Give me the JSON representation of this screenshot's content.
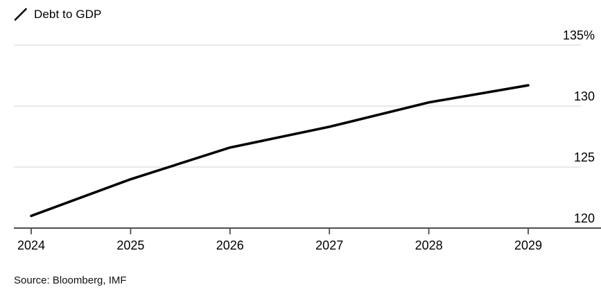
{
  "legend": {
    "label": "Debt to GDP"
  },
  "source": {
    "text": "Source: Bloomberg, IMF"
  },
  "chart_data": {
    "type": "line",
    "title": "",
    "categories": [
      "2024",
      "2025",
      "2026",
      "2027",
      "2028",
      "2029"
    ],
    "series": [
      {
        "name": "Debt to GDP",
        "values": [
          121.0,
          124.0,
          126.6,
          128.3,
          130.3,
          131.7
        ]
      }
    ],
    "xlabel": "",
    "ylabel": "",
    "ylim": [
      120,
      135
    ],
    "ytick_values": [
      120,
      125,
      130,
      135
    ],
    "ytick_labels": [
      "120",
      "125",
      "130",
      "135%"
    ],
    "ytick_label_side": "right",
    "grid": "horizontal",
    "legend_position": "top-left",
    "colors": {
      "line": "#000000",
      "grid": "#dcdcdc",
      "axis": "#4d4d4d",
      "tick_text": "#000000",
      "background": "#ffffff"
    }
  }
}
